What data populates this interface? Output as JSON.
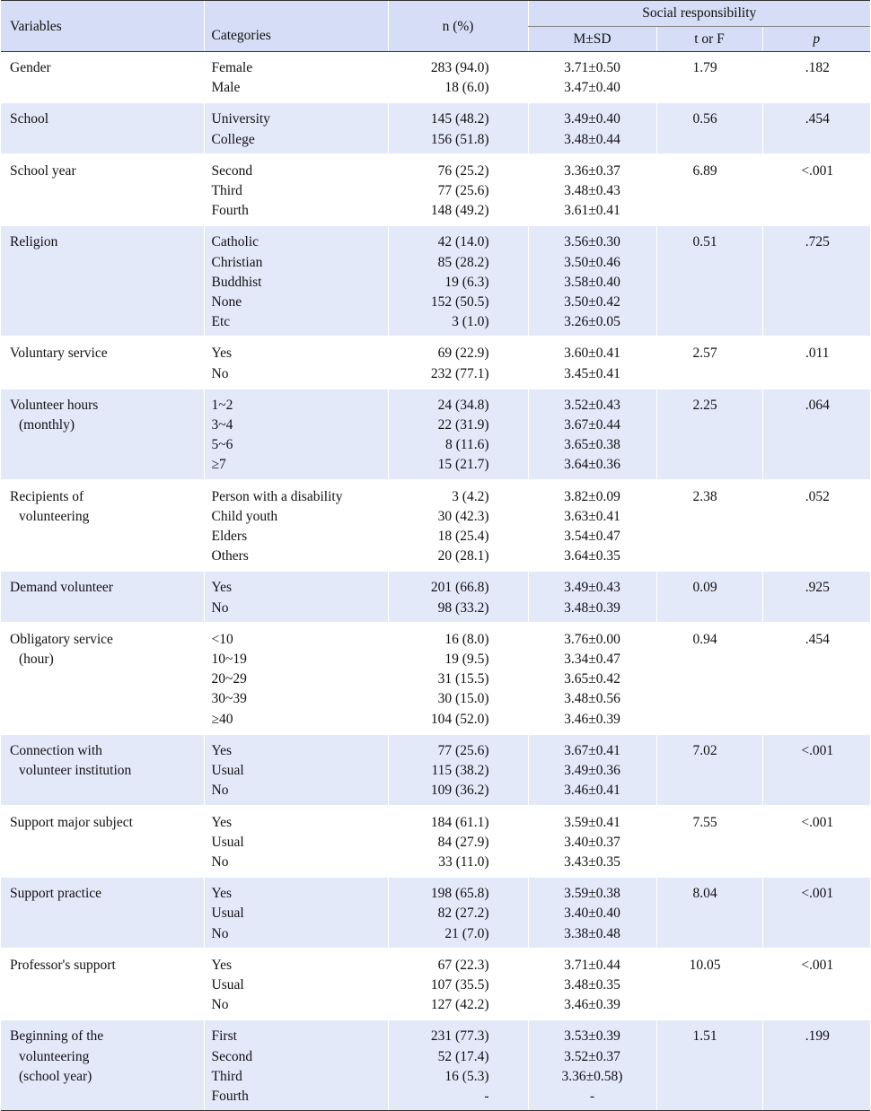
{
  "header": {
    "variables": "Variables",
    "categories": "Categories",
    "n_pct": "n (%)",
    "social_responsibility": "Social responsibility",
    "msd": "M±SD",
    "t_or_f": "t or F",
    "p": "p"
  },
  "rows": [
    {
      "var": [
        "Gender"
      ],
      "cats": [
        "Female",
        "Male"
      ],
      "n": [
        "283 (94.0)",
        "18 (6.0)"
      ],
      "m": [
        "3.71±0.50",
        "3.47±0.40"
      ],
      "t": "1.79",
      "p": ".182"
    },
    {
      "var": [
        "School"
      ],
      "cats": [
        "University",
        "College"
      ],
      "n": [
        "145 (48.2)",
        "156 (51.8)"
      ],
      "m": [
        "3.49±0.40",
        "3.48±0.44"
      ],
      "t": "0.56",
      "p": ".454"
    },
    {
      "var": [
        "School year"
      ],
      "cats": [
        "Second",
        "Third",
        "Fourth"
      ],
      "n": [
        "76 (25.2)",
        "77 (25.6)",
        "148 (49.2)"
      ],
      "m": [
        "3.36±0.37",
        "3.48±0.43",
        "3.61±0.41"
      ],
      "t": "6.89",
      "p": "<.001"
    },
    {
      "var": [
        "Religion"
      ],
      "cats": [
        "Catholic",
        "Christian",
        "Buddhist",
        "None",
        "Etc"
      ],
      "n": [
        "42 (14.0)",
        "85 (28.2)",
        "19 (6.3)",
        "152 (50.5)",
        "3 (1.0)"
      ],
      "m": [
        "3.56±0.30",
        "3.50±0.46",
        "3.58±0.40",
        "3.50±0.42",
        "3.26±0.05"
      ],
      "t": "0.51",
      "p": ".725"
    },
    {
      "var": [
        "Voluntary service"
      ],
      "cats": [
        "Yes",
        "No"
      ],
      "n": [
        "69 (22.9)",
        "232 (77.1)"
      ],
      "m": [
        "3.60±0.41",
        "3.45±0.41"
      ],
      "t": "2.57",
      "p": ".011"
    },
    {
      "var": [
        "Volunteer hours",
        "(monthly)"
      ],
      "cats": [
        "1~2",
        "3~4",
        "5~6",
        "≥7"
      ],
      "n": [
        "24 (34.8)",
        "22 (31.9)",
        "8 (11.6)",
        "15 (21.7)"
      ],
      "m": [
        "3.52±0.43",
        "3.67±0.44",
        "3.65±0.38",
        "3.64±0.36"
      ],
      "t": "2.25",
      "p": ".064"
    },
    {
      "var": [
        "Recipients of",
        "volunteering"
      ],
      "cats": [
        "Person with a disability",
        "Child youth",
        "Elders",
        "Others"
      ],
      "n": [
        "3 (4.2)",
        "30 (42.3)",
        "18 (25.4)",
        "20 (28.1)"
      ],
      "m": [
        "3.82±0.09",
        "3.63±0.41",
        "3.54±0.47",
        "3.64±0.35"
      ],
      "t": "2.38",
      "p": ".052"
    },
    {
      "var": [
        "Demand volunteer"
      ],
      "cats": [
        "Yes",
        "No"
      ],
      "n": [
        "201 (66.8)",
        "98 (33.2)"
      ],
      "m": [
        "3.49±0.43",
        "3.48±0.39"
      ],
      "t": "0.09",
      "p": ".925"
    },
    {
      "var": [
        "Obligatory service",
        "(hour)"
      ],
      "cats": [
        "<10",
        "10~19",
        "20~29",
        "30~39",
        "≥40"
      ],
      "n": [
        "16 (8.0)",
        "19 (9.5)",
        "31 (15.5)",
        "30 (15.0)",
        "104 (52.0)"
      ],
      "m": [
        "3.76±0.00",
        "3.34±0.47",
        "3.65±0.42",
        "3.48±0.56",
        "3.46±0.39"
      ],
      "t": "0.94",
      "p": ".454"
    },
    {
      "var": [
        "Connection with",
        "volunteer institution"
      ],
      "cats": [
        "Yes",
        "Usual",
        "No"
      ],
      "n": [
        "77 (25.6)",
        "115 (38.2)",
        "109 (36.2)"
      ],
      "m": [
        "3.67±0.41",
        "3.49±0.36",
        "3.46±0.41"
      ],
      "t": "7.02",
      "p": "<.001"
    },
    {
      "var": [
        "Support major subject"
      ],
      "cats": [
        "Yes",
        "Usual",
        "No"
      ],
      "n": [
        "184 (61.1)",
        "84 (27.9)",
        "33 (11.0)"
      ],
      "m": [
        "3.59±0.41",
        "3.40±0.37",
        "3.43±0.35"
      ],
      "t": "7.55",
      "p": "<.001"
    },
    {
      "var": [
        "Support practice"
      ],
      "cats": [
        "Yes",
        "Usual",
        "No"
      ],
      "n": [
        "198 (65.8)",
        "82 (27.2)",
        "21 (7.0)"
      ],
      "m": [
        "3.59±0.38",
        "3.40±0.40",
        "3.38±0.48"
      ],
      "t": "8.04",
      "p": "<.001"
    },
    {
      "var": [
        "Professor's support"
      ],
      "cats": [
        "Yes",
        "Usual",
        "No"
      ],
      "n": [
        "67 (22.3)",
        "107 (35.5)",
        "127 (42.2)"
      ],
      "m": [
        "3.71±0.44",
        "3.48±0.35",
        "3.46±0.39"
      ],
      "t": "10.05",
      "p": "<.001"
    },
    {
      "var": [
        "Beginning of the",
        "volunteering",
        "(school year)"
      ],
      "cats": [
        "First",
        "Second",
        "Third",
        "Fourth"
      ],
      "n": [
        "231 (77.3)",
        "52 (17.4)",
        "16 (5.3)",
        "-"
      ],
      "m": [
        "3.53±0.39",
        "3.52±0.37",
        "3.36±0.58)",
        "-"
      ],
      "t": "1.51",
      "p": ".199"
    }
  ]
}
